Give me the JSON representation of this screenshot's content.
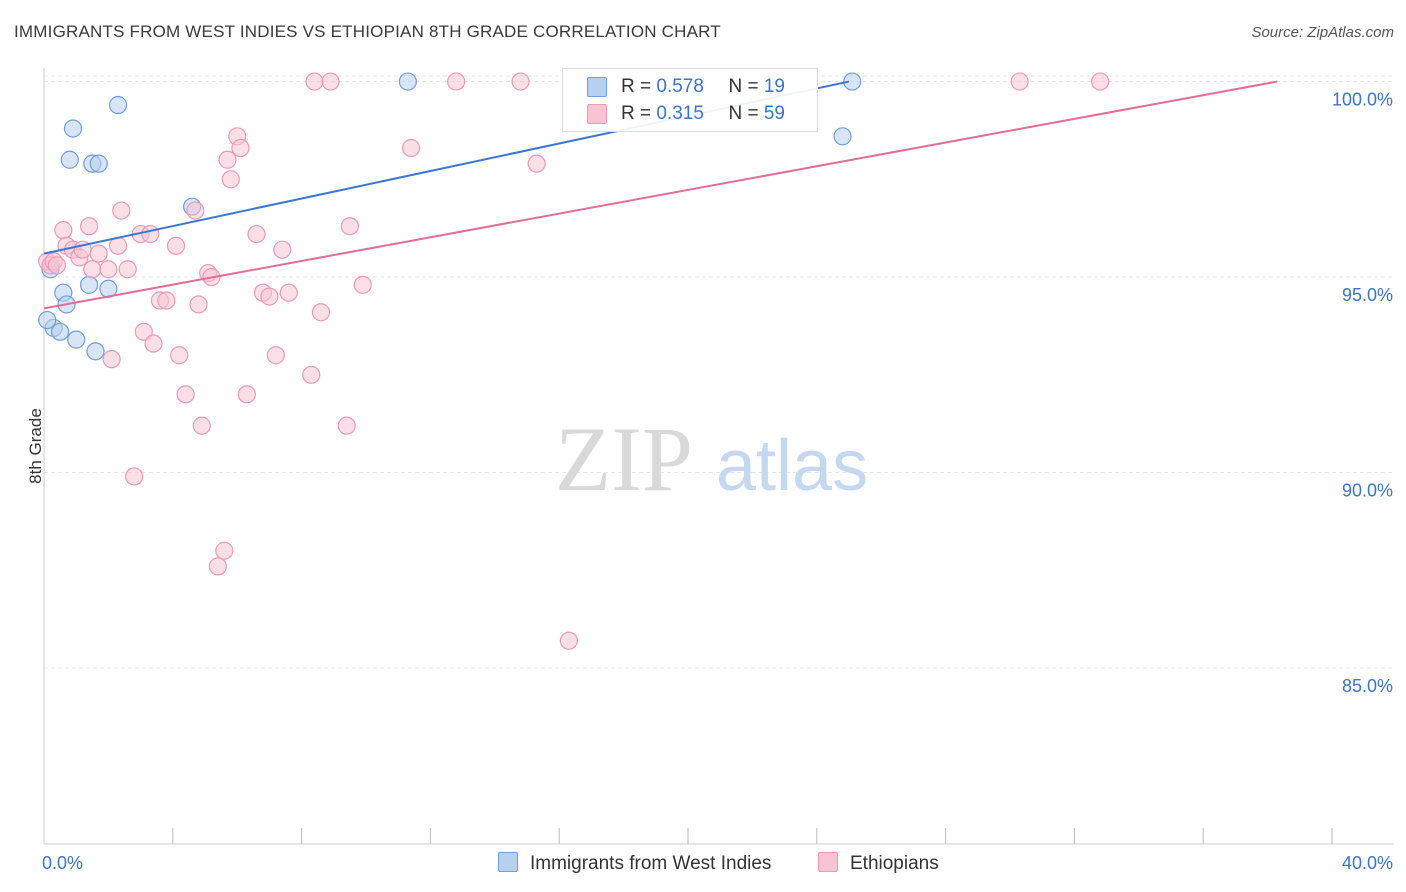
{
  "title": "IMMIGRANTS FROM WEST INDIES VS ETHIOPIAN 8TH GRADE CORRELATION CHART",
  "source": "Source: ZipAtlas.com",
  "watermark": {
    "zip": "ZIP",
    "atlas": "atlas"
  },
  "legend": {
    "series1": {
      "r_label": "R = ",
      "r_value": "0.578",
      "n_label": "N = ",
      "n_value": "19"
    },
    "series2": {
      "r_label": "R = ",
      "r_value": "0.315",
      "n_label": "N = ",
      "n_value": "59"
    }
  },
  "bottom_legend": {
    "series1": "Immigrants from West Indies",
    "series2": "Ethiopians"
  },
  "colors": {
    "blue_fill": "#b7d0f0",
    "blue_stroke": "#6f9fdc",
    "blue_line": "#3a78d0",
    "pink_fill": "#f8c4d4",
    "pink_stroke": "#ea9ab5",
    "pink_line": "#e26d97",
    "tick_label": "#3d74c9",
    "grid": "#e6e6e6"
  },
  "chart_data": {
    "type": "scatter",
    "title": "IMMIGRANTS FROM WEST INDIES VS ETHIOPIAN 8TH GRADE CORRELATION CHART",
    "xlabel": "",
    "ylabel": "8th Grade",
    "xlim": [
      0,
      40
    ],
    "ylim": [
      80.5,
      100.5
    ],
    "x_tick_labels": [
      {
        "value": 0,
        "label": "0.0%"
      },
      {
        "value": 40,
        "label": "40.0%"
      }
    ],
    "x_minor_ticks": [
      4,
      8,
      12,
      16,
      20,
      24,
      28,
      32,
      36,
      40
    ],
    "y_ticks": [
      {
        "value": 100,
        "label": "100.0%"
      },
      {
        "value": 95,
        "label": "95.0%"
      },
      {
        "value": 90,
        "label": "90.0%"
      },
      {
        "value": 85,
        "label": "85.0%"
      }
    ],
    "grid": true,
    "series": [
      {
        "name": "Immigrants from West Indies",
        "color": "blue",
        "R": 0.578,
        "N": 19,
        "trend": {
          "x0": 0,
          "y0": 95.6,
          "x1": 25.0,
          "y1": 100.0
        },
        "points": [
          [
            0.2,
            95.2
          ],
          [
            0.3,
            93.7
          ],
          [
            0.5,
            93.6
          ],
          [
            0.6,
            94.6
          ],
          [
            0.7,
            94.3
          ],
          [
            0.8,
            98.0
          ],
          [
            0.9,
            98.8
          ],
          [
            1.0,
            93.4
          ],
          [
            1.4,
            94.8
          ],
          [
            1.5,
            97.9
          ],
          [
            1.6,
            93.1
          ],
          [
            1.7,
            97.9
          ],
          [
            2.0,
            94.7
          ],
          [
            2.3,
            99.4
          ],
          [
            4.6,
            96.8
          ],
          [
            11.3,
            100.0
          ],
          [
            25.1,
            100.0
          ],
          [
            24.8,
            98.6
          ],
          [
            0.1,
            93.9
          ]
        ]
      },
      {
        "name": "Ethiopians",
        "color": "pink",
        "R": 0.315,
        "N": 59,
        "trend": {
          "x0": 0,
          "y0": 94.2,
          "x1": 38.3,
          "y1": 100.0
        },
        "points": [
          [
            0.1,
            95.4
          ],
          [
            0.2,
            95.3
          ],
          [
            0.3,
            95.4
          ],
          [
            0.4,
            95.3
          ],
          [
            0.6,
            96.2
          ],
          [
            0.7,
            95.8
          ],
          [
            0.9,
            95.7
          ],
          [
            1.1,
            95.5
          ],
          [
            1.2,
            95.7
          ],
          [
            1.4,
            96.3
          ],
          [
            1.5,
            95.2
          ],
          [
            1.7,
            95.6
          ],
          [
            2.0,
            95.2
          ],
          [
            2.1,
            92.9
          ],
          [
            2.3,
            95.8
          ],
          [
            2.4,
            96.7
          ],
          [
            2.6,
            95.2
          ],
          [
            2.8,
            89.9
          ],
          [
            3.0,
            96.1
          ],
          [
            3.1,
            93.6
          ],
          [
            3.3,
            96.1
          ],
          [
            3.4,
            93.3
          ],
          [
            3.6,
            94.4
          ],
          [
            3.8,
            94.4
          ],
          [
            4.1,
            95.8
          ],
          [
            4.2,
            93.0
          ],
          [
            4.4,
            92.0
          ],
          [
            4.7,
            96.7
          ],
          [
            4.8,
            94.3
          ],
          [
            4.9,
            91.2
          ],
          [
            5.1,
            95.1
          ],
          [
            5.2,
            95.0
          ],
          [
            5.4,
            87.6
          ],
          [
            5.6,
            88.0
          ],
          [
            5.7,
            98.0
          ],
          [
            5.8,
            97.5
          ],
          [
            6.0,
            98.6
          ],
          [
            6.1,
            98.3
          ],
          [
            6.3,
            92.0
          ],
          [
            6.6,
            96.1
          ],
          [
            6.8,
            94.6
          ],
          [
            7.0,
            94.5
          ],
          [
            7.2,
            93.0
          ],
          [
            7.4,
            95.7
          ],
          [
            7.6,
            94.6
          ],
          [
            8.3,
            92.5
          ],
          [
            8.4,
            100.0
          ],
          [
            8.6,
            94.1
          ],
          [
            8.9,
            100.0
          ],
          [
            9.4,
            91.2
          ],
          [
            9.5,
            96.3
          ],
          [
            9.9,
            94.8
          ],
          [
            11.4,
            98.3
          ],
          [
            12.8,
            100.0
          ],
          [
            14.8,
            100.0
          ],
          [
            15.3,
            97.9
          ],
          [
            16.3,
            85.7
          ],
          [
            30.3,
            100.0
          ],
          [
            32.8,
            100.0
          ]
        ]
      }
    ]
  }
}
